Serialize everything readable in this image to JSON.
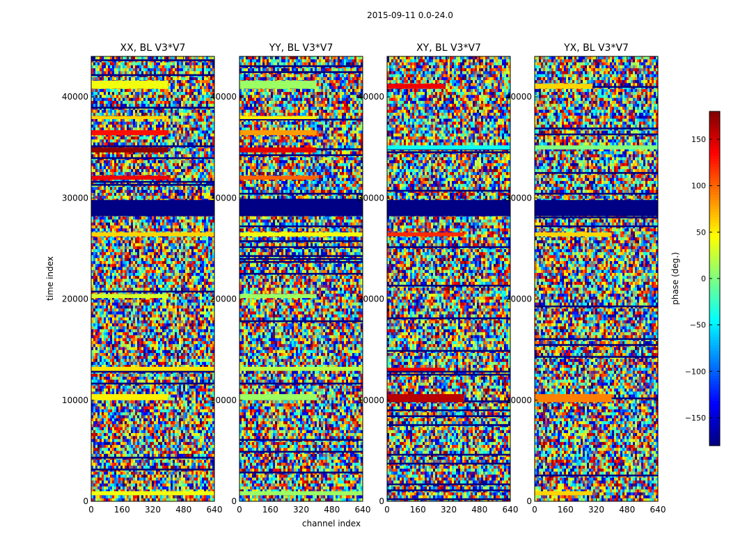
{
  "suptitle": "2015-09-11 0.0-24.0",
  "chart_data": {
    "type": "heatmap",
    "shared_axes": {
      "xlabel": "channel index",
      "ylabel": "time index",
      "xlim": [
        0,
        640
      ],
      "ylim": [
        0,
        44000
      ],
      "xticks": [
        0,
        160,
        320,
        480,
        640
      ],
      "yticks": [
        0,
        10000,
        20000,
        30000,
        40000
      ]
    },
    "panels": [
      {
        "title": "XX, BL V3*V7",
        "bands": [
          {
            "t0": 40800,
            "t1": 41600,
            "ch_end": 400,
            "phase": 40
          },
          {
            "t0": 37800,
            "t1": 38100,
            "ch_end": 400,
            "phase": 60
          },
          {
            "t0": 36200,
            "t1": 36700,
            "ch_end": 400,
            "phase": 130
          },
          {
            "t0": 34500,
            "t1": 35000,
            "ch_end": 400,
            "phase": 175
          },
          {
            "t0": 31800,
            "t1": 32200,
            "ch_end": 400,
            "phase": 140
          },
          {
            "t0": 28200,
            "t1": 29800,
            "ch_end": 640,
            "phase": -178
          },
          {
            "t0": 26200,
            "t1": 26600,
            "ch_end": 640,
            "phase": 60
          },
          {
            "t0": 20100,
            "t1": 20500,
            "ch_end": 400,
            "phase": 30
          },
          {
            "t0": 12900,
            "t1": 13300,
            "ch_end": 640,
            "phase": 55
          },
          {
            "t0": 10000,
            "t1": 10600,
            "ch_end": 400,
            "phase": 50
          },
          {
            "t0": 600,
            "t1": 1000,
            "ch_end": 640,
            "phase": 40
          }
        ]
      },
      {
        "title": "YY, BL V3*V7",
        "bands": [
          {
            "t0": 40800,
            "t1": 41600,
            "ch_end": 400,
            "phase": 10
          },
          {
            "t0": 37800,
            "t1": 38100,
            "ch_end": 400,
            "phase": 50
          },
          {
            "t0": 36200,
            "t1": 36700,
            "ch_end": 400,
            "phase": 80
          },
          {
            "t0": 34500,
            "t1": 35000,
            "ch_end": 400,
            "phase": 145
          },
          {
            "t0": 31800,
            "t1": 32200,
            "ch_end": 400,
            "phase": 100
          },
          {
            "t0": 28200,
            "t1": 29800,
            "ch_end": 640,
            "phase": -178
          },
          {
            "t0": 26200,
            "t1": 26600,
            "ch_end": 640,
            "phase": 40
          },
          {
            "t0": 20100,
            "t1": 20500,
            "ch_end": 400,
            "phase": 10
          },
          {
            "t0": 12900,
            "t1": 13300,
            "ch_end": 640,
            "phase": 20
          },
          {
            "t0": 10000,
            "t1": 10600,
            "ch_end": 400,
            "phase": 10
          },
          {
            "t0": 600,
            "t1": 1000,
            "ch_end": 640,
            "phase": 10
          }
        ]
      },
      {
        "title": "XY, BL V3*V7",
        "bands": [
          {
            "t0": 40800,
            "t1": 41300,
            "ch_end": 300,
            "phase": 140
          },
          {
            "t0": 34800,
            "t1": 35200,
            "ch_end": 640,
            "phase": -40
          },
          {
            "t0": 28200,
            "t1": 29800,
            "ch_end": 640,
            "phase": -178
          },
          {
            "t0": 26200,
            "t1": 26600,
            "ch_end": 400,
            "phase": 120
          },
          {
            "t0": 12900,
            "t1": 13200,
            "ch_end": 300,
            "phase": 140
          },
          {
            "t0": 9800,
            "t1": 10600,
            "ch_end": 400,
            "phase": 160
          }
        ]
      },
      {
        "title": "YX, BL V3*V7",
        "bands": [
          {
            "t0": 40800,
            "t1": 41300,
            "ch_end": 300,
            "phase": 60
          },
          {
            "t0": 34800,
            "t1": 35200,
            "ch_end": 640,
            "phase": 0
          },
          {
            "t0": 28200,
            "t1": 29800,
            "ch_end": 640,
            "phase": -178
          },
          {
            "t0": 26200,
            "t1": 26600,
            "ch_end": 400,
            "phase": 60
          },
          {
            "t0": 9800,
            "t1": 10600,
            "ch_end": 400,
            "phase": 90
          },
          {
            "t0": 600,
            "t1": 1000,
            "ch_end": 300,
            "phase": 60
          }
        ]
      }
    ],
    "colorbar": {
      "label": "phase (deg.)",
      "vmin": -180,
      "vmax": 180,
      "ticks": [
        -150,
        -100,
        -50,
        0,
        50,
        100,
        150
      ],
      "tick_labels": [
        "−150",
        "−100",
        "−50",
        "0",
        "50",
        "100",
        "150"
      ],
      "colormap": "jet"
    }
  }
}
